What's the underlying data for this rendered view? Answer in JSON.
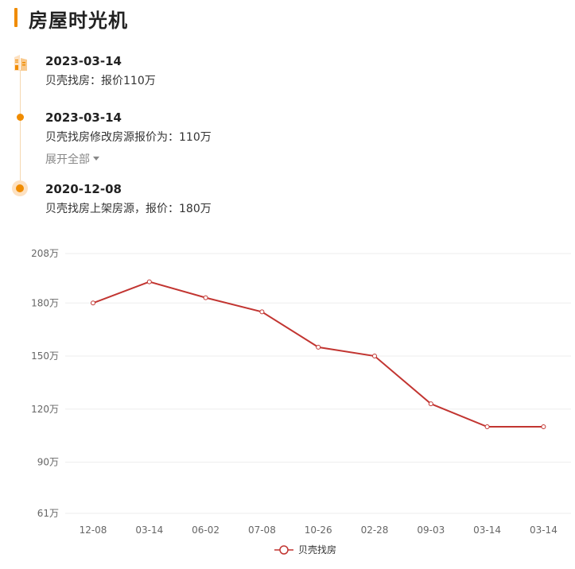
{
  "header": {
    "title": "房屋时光机"
  },
  "timeline": {
    "events": [
      {
        "date": "2023-03-14",
        "desc": "贝壳找房：报价110万"
      },
      {
        "date": "2023-03-14",
        "desc": "贝壳找房修改房源报价为：110万"
      },
      {
        "date": "2020-12-08",
        "desc": "贝壳找房上架房源，报价：180万"
      }
    ],
    "expand_label": "展开全部"
  },
  "colors": {
    "accent": "#f08c00",
    "series": "#c23531"
  },
  "chart_data": {
    "type": "line",
    "categories": [
      "12-08",
      "03-14",
      "06-02",
      "07-08",
      "10-26",
      "02-28",
      "09-03",
      "03-14",
      "03-14"
    ],
    "y_ticks": [
      "208万",
      "180万",
      "150万",
      "120万",
      "90万",
      "61万"
    ],
    "y_tick_values": [
      208,
      180,
      150,
      120,
      90,
      61
    ],
    "ylim": [
      61,
      208
    ],
    "series": [
      {
        "name": "贝壳找房",
        "values": [
          180,
          192,
          183,
          175,
          155,
          150,
          123,
          110,
          110
        ]
      }
    ],
    "legend_position": "bottom-center",
    "grid": true
  }
}
